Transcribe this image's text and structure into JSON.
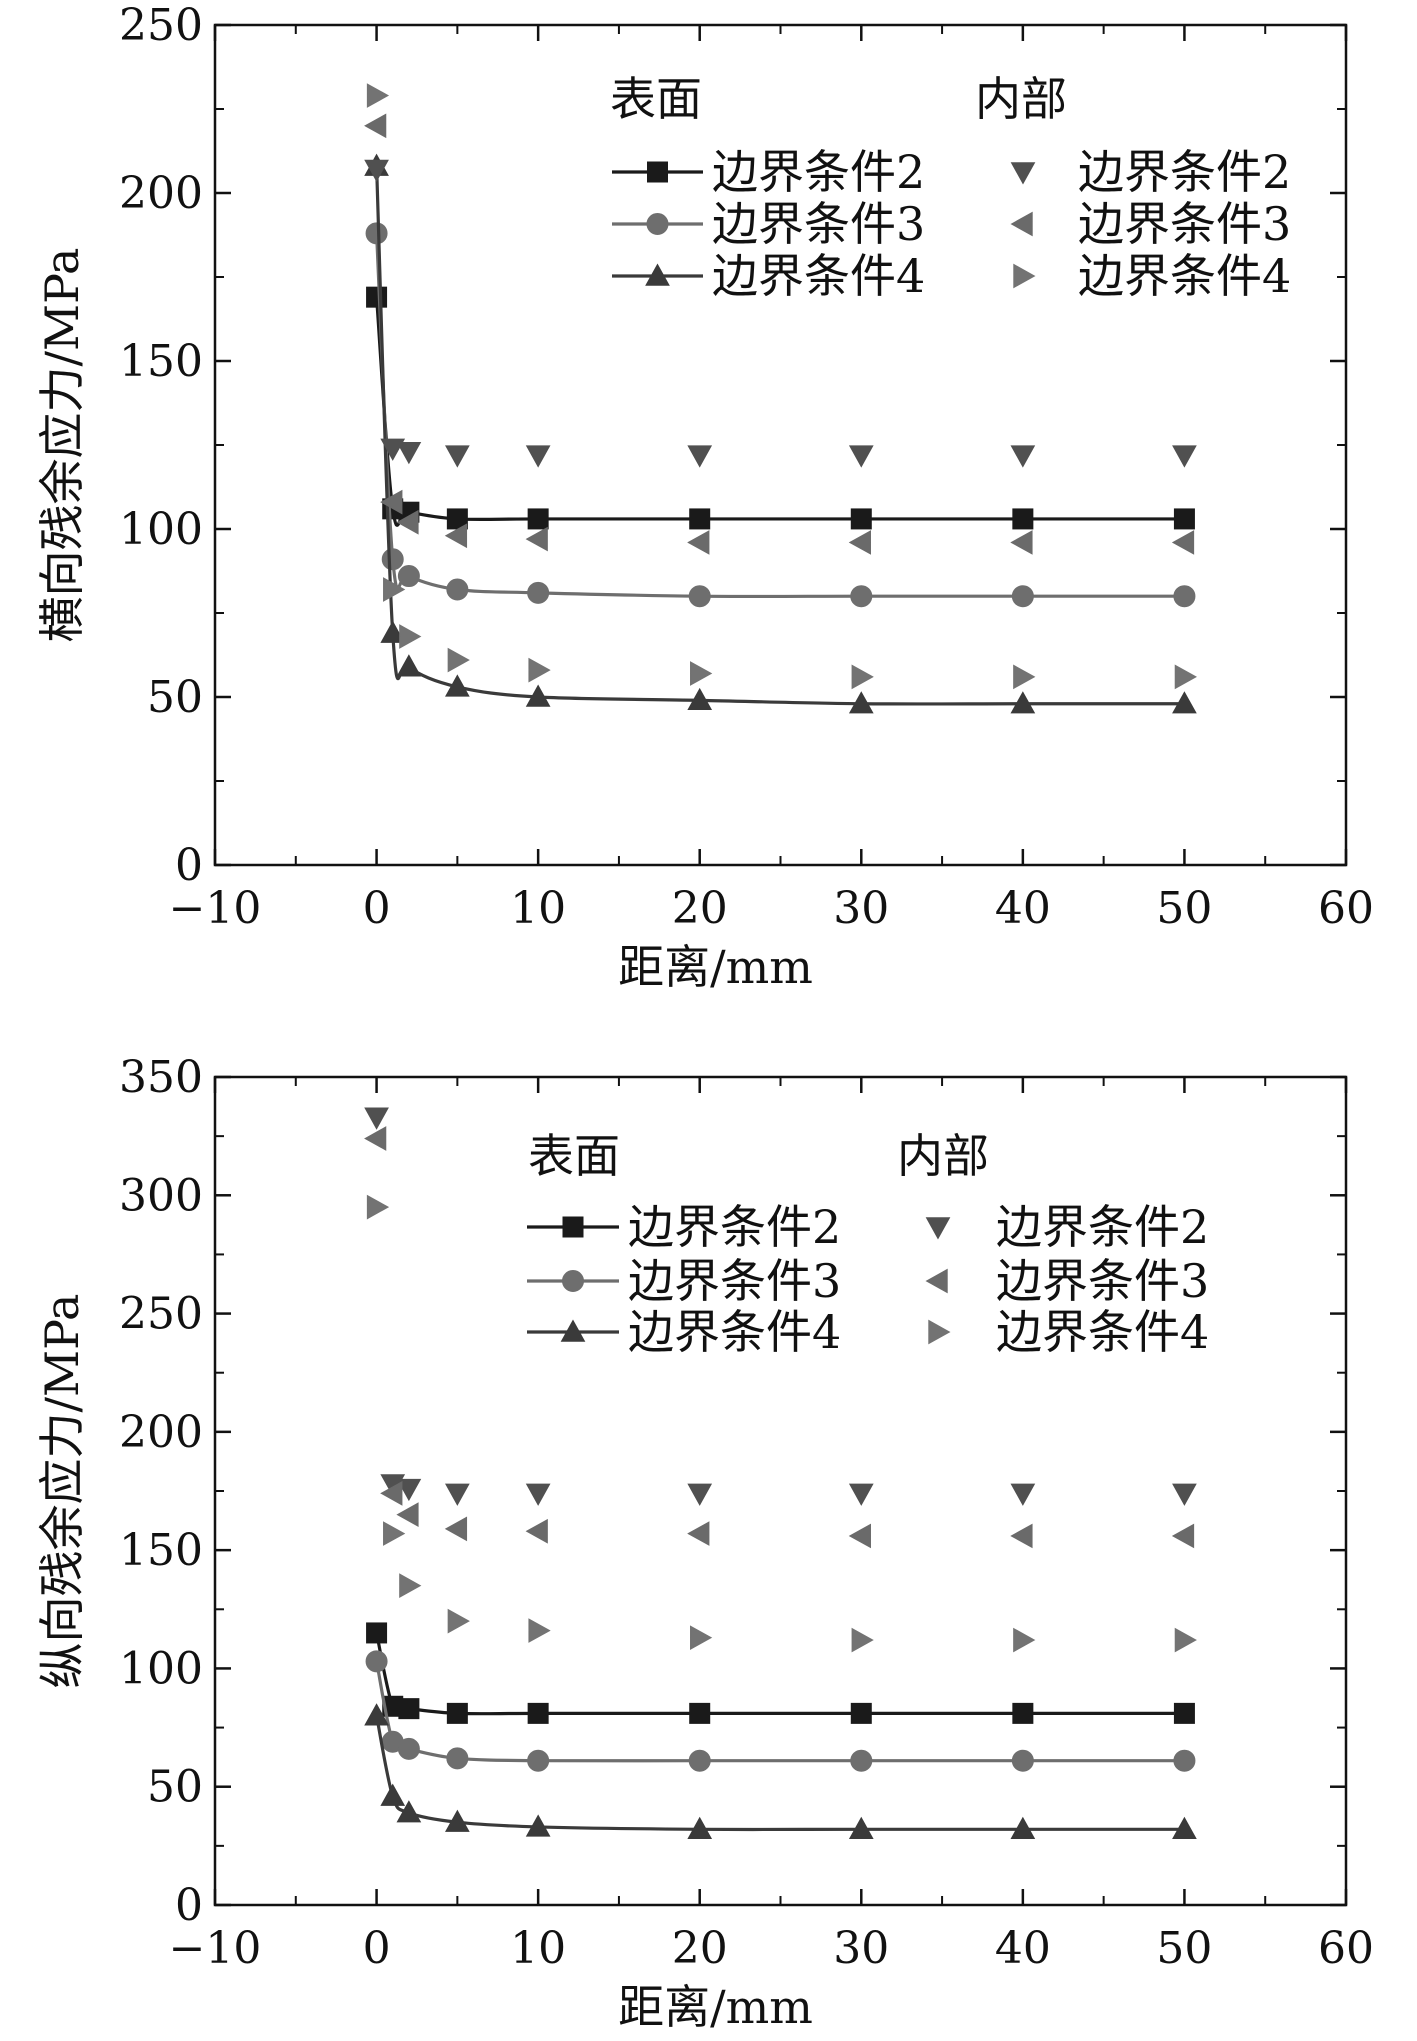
{
  "chart_data": [
    {
      "type": "line",
      "xlabel": "距离/mm",
      "ylabel": "横向残余应力/MPa",
      "xlim": [
        -10,
        60
      ],
      "ylim": [
        0,
        250
      ],
      "x_ticks": [
        -10,
        0,
        10,
        20,
        30,
        40,
        50,
        60
      ],
      "x_tick_labels": [
        "−10",
        "0",
        "10",
        "20",
        "30",
        "40",
        "50",
        "60"
      ],
      "y_ticks": [
        0,
        50,
        100,
        150,
        200,
        250
      ],
      "y_tick_labels": [
        "0",
        "50",
        "100",
        "150",
        "200",
        "250"
      ],
      "grid": false,
      "legend": {
        "placement": "top-right",
        "group_titles": [
          "表面",
          "内部"
        ],
        "surface_labels": [
          "边界条件2",
          "边界条件3",
          "边界条件4"
        ],
        "interior_labels": [
          "边界条件2",
          "边界条件3",
          "边界条件4"
        ]
      },
      "series": [
        {
          "group": "表面",
          "label": "边界条件2",
          "marker": "square",
          "color": "#1a1a1a",
          "line": true,
          "x": [
            0,
            1,
            2,
            5,
            10,
            20,
            30,
            40,
            50
          ],
          "y": [
            169,
            106,
            105,
            103,
            103,
            103,
            103,
            103,
            103
          ]
        },
        {
          "group": "表面",
          "label": "边界条件3",
          "marker": "circle",
          "color": "#6e6e6e",
          "line": true,
          "x": [
            0,
            1,
            2,
            5,
            10,
            20,
            30,
            40,
            50
          ],
          "y": [
            188,
            91,
            86,
            82,
            81,
            80,
            80,
            80,
            80
          ]
        },
        {
          "group": "表面",
          "label": "边界条件4",
          "marker": "triangle-up",
          "color": "#3a3a3a",
          "line": true,
          "x": [
            0,
            1,
            2,
            5,
            10,
            20,
            30,
            40,
            50
          ],
          "y": [
            208,
            69,
            59,
            53,
            50,
            49,
            48,
            48,
            48
          ]
        },
        {
          "group": "内部",
          "label": "边界条件2",
          "marker": "triangle-down",
          "color": "#505050",
          "line": false,
          "x": [
            0,
            1,
            2,
            5,
            10,
            20,
            30,
            40,
            50
          ],
          "y": [
            207,
            124,
            123,
            122,
            122,
            122,
            122,
            122,
            122
          ]
        },
        {
          "group": "内部",
          "label": "边界条件3",
          "marker": "triangle-left",
          "color": "#6a6a6a",
          "line": false,
          "x": [
            0,
            1,
            2,
            5,
            10,
            20,
            30,
            40,
            50
          ],
          "y": [
            220,
            108,
            102,
            98,
            97,
            96,
            96,
            96,
            96
          ]
        },
        {
          "group": "内部",
          "label": "边界条件4",
          "marker": "triangle-right",
          "color": "#737373",
          "line": false,
          "x": [
            0,
            1,
            2,
            5,
            10,
            20,
            30,
            40,
            50
          ],
          "y": [
            229,
            82,
            68,
            61,
            58,
            57,
            56,
            56,
            56
          ]
        }
      ]
    },
    {
      "type": "line",
      "xlabel": "距离/mm",
      "ylabel": "纵向残余应力/MPa",
      "xlim": [
        -10,
        60
      ],
      "ylim": [
        0,
        350
      ],
      "x_ticks": [
        -10,
        0,
        10,
        20,
        30,
        40,
        50,
        60
      ],
      "x_tick_labels": [
        "−10",
        "0",
        "10",
        "20",
        "30",
        "40",
        "50",
        "60"
      ],
      "y_ticks": [
        0,
        50,
        100,
        150,
        200,
        250,
        300,
        350
      ],
      "y_tick_labels": [
        "0",
        "50",
        "100",
        "150",
        "200",
        "250",
        "300",
        "350"
      ],
      "grid": false,
      "legend": {
        "placement": "top-right",
        "group_titles": [
          "表面",
          "内部"
        ],
        "surface_labels": [
          "边界条件2",
          "边界条件3",
          "边界条件4"
        ],
        "interior_labels": [
          "边界条件2",
          "边界条件3",
          "边界条件4"
        ]
      },
      "series": [
        {
          "group": "表面",
          "label": "边界条件2",
          "marker": "square",
          "color": "#1a1a1a",
          "line": true,
          "x": [
            0,
            1,
            2,
            5,
            10,
            20,
            30,
            40,
            50
          ],
          "y": [
            115,
            84,
            83,
            81,
            81,
            81,
            81,
            81,
            81
          ]
        },
        {
          "group": "表面",
          "label": "边界条件3",
          "marker": "circle",
          "color": "#6e6e6e",
          "line": true,
          "x": [
            0,
            1,
            2,
            5,
            10,
            20,
            30,
            40,
            50
          ],
          "y": [
            103,
            69,
            66,
            62,
            61,
            61,
            61,
            61,
            61
          ]
        },
        {
          "group": "表面",
          "label": "边界条件4",
          "marker": "triangle-up",
          "color": "#3a3a3a",
          "line": true,
          "x": [
            0,
            1,
            2,
            5,
            10,
            20,
            30,
            40,
            50
          ],
          "y": [
            80,
            46,
            39,
            35,
            33,
            32,
            32,
            32,
            32
          ]
        },
        {
          "group": "内部",
          "label": "边界条件2",
          "marker": "triangle-down",
          "color": "#505050",
          "line": false,
          "x": [
            0,
            1,
            2,
            5,
            10,
            20,
            30,
            40,
            50
          ],
          "y": [
            333,
            178,
            176,
            174,
            174,
            174,
            174,
            174,
            174
          ]
        },
        {
          "group": "内部",
          "label": "边界条件3",
          "marker": "triangle-left",
          "color": "#6a6a6a",
          "line": false,
          "x": [
            0,
            1,
            2,
            5,
            10,
            20,
            30,
            40,
            50
          ],
          "y": [
            324,
            174,
            165,
            159,
            158,
            157,
            156,
            156,
            156
          ]
        },
        {
          "group": "内部",
          "label": "边界条件4",
          "marker": "triangle-right",
          "color": "#737373",
          "line": false,
          "x": [
            0,
            1,
            2,
            5,
            10,
            20,
            30,
            40,
            50
          ],
          "y": [
            295,
            157,
            135,
            120,
            116,
            113,
            112,
            112,
            112
          ]
        }
      ]
    }
  ]
}
